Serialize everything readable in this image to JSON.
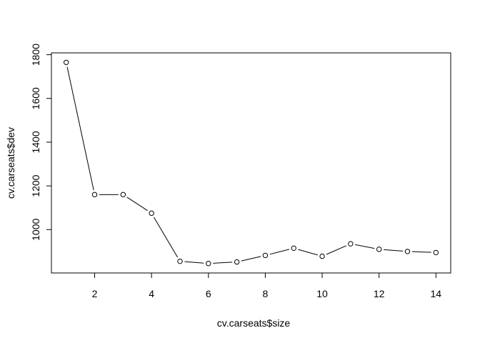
{
  "chart_data": {
    "type": "line",
    "markers": "open-circle",
    "xlabel": "cv.carseats$size",
    "ylabel": "cv.carseats$dev",
    "title": "",
    "x": [
      1,
      2,
      3,
      4,
      5,
      6,
      7,
      8,
      9,
      10,
      11,
      12,
      13,
      14
    ],
    "series": [
      {
        "values": [
          1765,
          1160,
          1160,
          1075,
          855,
          845,
          852,
          882,
          915,
          878,
          935,
          910,
          900,
          895
        ]
      }
    ],
    "xticks": [
      2,
      4,
      6,
      8,
      10,
      12,
      14
    ],
    "yticks": [
      1000,
      1200,
      1400,
      1600,
      1800
    ],
    "xlim": [
      0.48,
      14.52
    ],
    "ylim": [
      801.6,
      1808.4
    ],
    "grid": false,
    "box": true,
    "line_color": "#000000",
    "marker_fill": "#ffffff"
  }
}
